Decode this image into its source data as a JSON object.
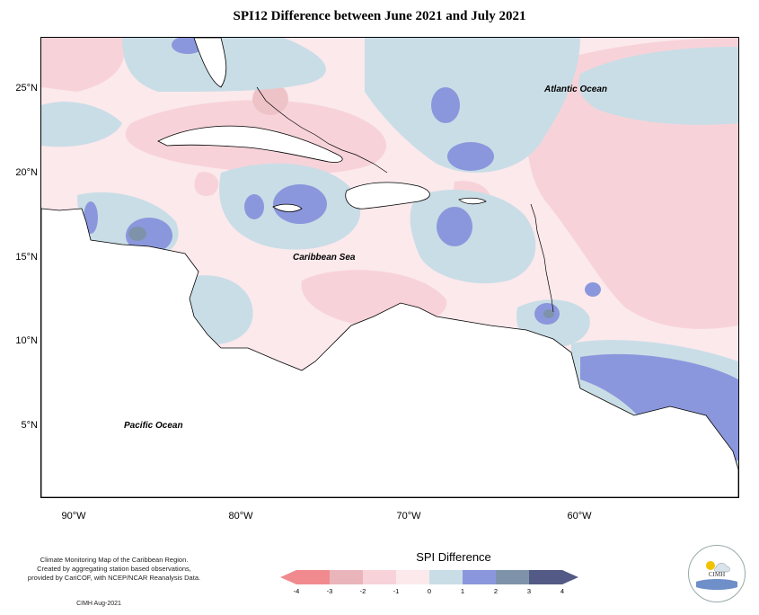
{
  "title": "SPI12 Difference between June 2021 and July 2021",
  "lat_labels": [
    "25°N",
    "20°N",
    "15°N",
    "10°N",
    "5°N"
  ],
  "lon_labels": [
    "90°W",
    "80°W",
    "70°W",
    "60°W"
  ],
  "ocean_labels": {
    "atlantic": "Atlantic Ocean",
    "caribbean": "Caribbean Sea",
    "pacific": "Pacific Ocean"
  },
  "credit": {
    "line1": "Climate Monitoring Map of the Caribbean Region.",
    "line2": "Created by aggregating station based observations,",
    "line3": "provided by CariCOF, with NCEP/NCAR Reanalysis Data.",
    "footer": "CIMH Aug-2021"
  },
  "legend": {
    "title": "SPI Difference",
    "ticks": [
      "-4",
      "-3",
      "-2",
      "-1",
      "0",
      "1",
      "2",
      "3",
      "4"
    ],
    "colors": [
      "#f08a8f",
      "#e9b5ba",
      "#f7d3d9",
      "#fbe9ec",
      "#c9dde6",
      "#8b97dc",
      "#7e93aa",
      "#545a86"
    ]
  },
  "logo": {
    "text": "CIMH"
  }
}
